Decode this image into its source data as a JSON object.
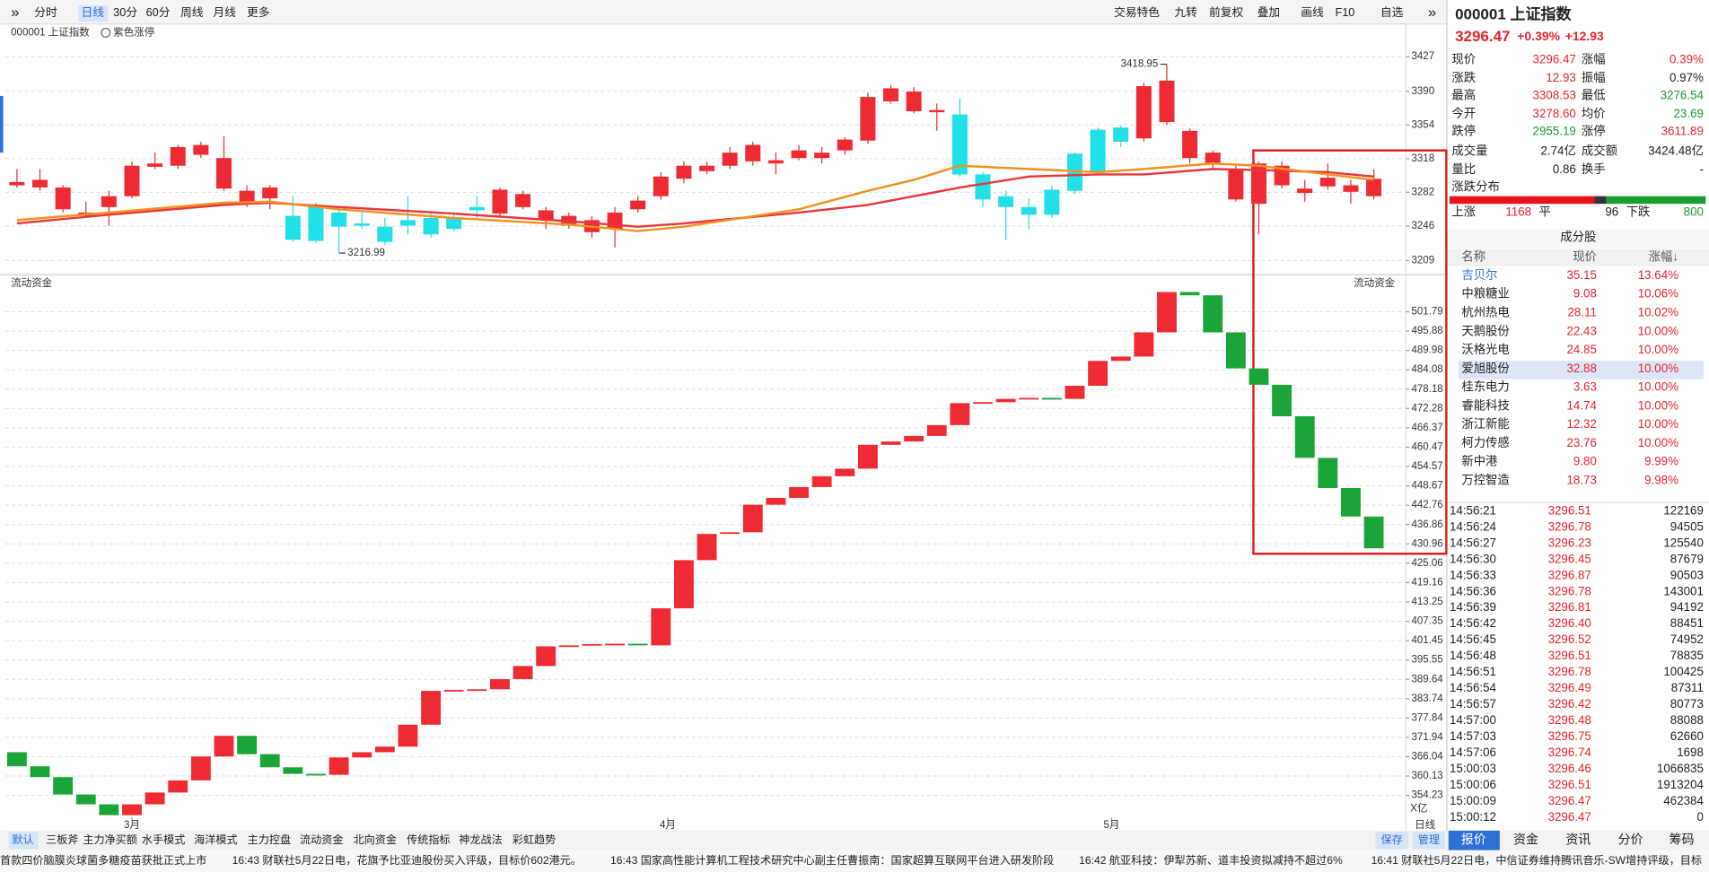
{
  "toolbar": {
    "left": [
      "分时",
      "日线",
      "30分",
      "60分",
      "周线",
      "月线",
      "更多"
    ],
    "right": [
      "交易特色",
      "九转",
      "前复权",
      "叠加",
      "画线",
      "F10",
      "自选"
    ]
  },
  "chart_data": [
    {
      "type": "candlestick",
      "title": "000001 上证指数",
      "subtitle": "紫色涨停",
      "up_color": "#ee2b33",
      "down_color": "#22e0e8",
      "xlim": [
        0.5,
        61.4
      ],
      "ylim": [
        3196.2,
        3458.5
      ],
      "yticks": [
        3427,
        3390,
        3354,
        3318,
        3282,
        3246,
        3209
      ],
      "grid": true,
      "open": [
        3289.5,
        3287.1,
        3263.8,
        3256.8,
        3266.2,
        3277.8,
        3309.3,
        3310.4,
        3322.1,
        3286.0,
        3272.0,
        3275.5,
        3256.8,
        3268.5,
        3260.3,
        3248.7,
        3245.2,
        3252.2,
        3254.5,
        3254.5,
        3266.2,
        3259.2,
        3266.2,
        3252.2,
        3246.3,
        3239.3,
        3242.8,
        3263.8,
        3277.8,
        3296.5,
        3304.6,
        3310.4,
        3315.1,
        3312.8,
        3318.6,
        3318.6,
        3326.8,
        3337.3,
        3379.2,
        3368.7,
        3367.6,
        3365.2,
        3301.1,
        3277.8,
        3266.2,
        3284.8,
        3323.3,
        3348.9,
        3351.2,
        3339.6,
        3357.1,
        3318.6,
        3312.8,
        3274.3,
        3269.7,
        3289.5,
        3281.3,
        3288.3,
        3282.5,
        3277.8
      ],
      "high": [
        3306.9,
        3306.9,
        3289.5,
        3272.0,
        3283.6,
        3315.1,
        3324.4,
        3332.6,
        3336.1,
        3341.9,
        3289.5,
        3289.5,
        3277.8,
        3270.8,
        3263.8,
        3260.3,
        3254.5,
        3277.8,
        3260.3,
        3260.3,
        3277.8,
        3287.1,
        3283.6,
        3266.2,
        3260.3,
        3256.8,
        3266.2,
        3277.8,
        3303.5,
        3315.1,
        3315.1,
        3330.3,
        3336.1,
        3324.4,
        3332.6,
        3330.3,
        3340.7,
        3388.5,
        3396.7,
        3394.4,
        3376.9,
        3382.7,
        3303.5,
        3283.6,
        3275.5,
        3289.5,
        3324.4,
        3351.2,
        3353.6,
        3399.0,
        3418.95,
        3350.1,
        3326.8,
        3312.8,
        3315.1,
        3315.1,
        3295.3,
        3312.8,
        3295.3,
        3306.9
      ],
      "low": [
        3287.1,
        3283.6,
        3260.3,
        3254.5,
        3246.3,
        3275.5,
        3306.9,
        3306.9,
        3318.6,
        3283.6,
        3266.2,
        3263.8,
        3228.9,
        3227.7,
        3216.99,
        3242.8,
        3225.4,
        3237.0,
        3233.5,
        3240.5,
        3254.5,
        3256.8,
        3263.8,
        3242.8,
        3242.8,
        3233.5,
        3223.0,
        3260.3,
        3274.3,
        3291.8,
        3301.1,
        3306.9,
        3310.4,
        3301.1,
        3316.3,
        3312.8,
        3322.1,
        3333.8,
        3376.9,
        3366.4,
        3347.7,
        3298.8,
        3266.2,
        3231.2,
        3242.8,
        3254.5,
        3280.1,
        3303.5,
        3330.3,
        3336.1,
        3353.6,
        3312.8,
        3306.9,
        3272.0,
        3237.0,
        3286.0,
        3272.0,
        3284.8,
        3269.7,
        3274.3
      ],
      "close": [
        3293.0,
        3295.3,
        3287.1,
        3260.3,
        3277.8,
        3310.4,
        3312.8,
        3330.3,
        3332.6,
        3318.6,
        3283.6,
        3287.1,
        3231.2,
        3230.0,
        3245.2,
        3246.3,
        3228.9,
        3246.3,
        3237.0,
        3242.8,
        3262.7,
        3284.8,
        3280.1,
        3262.7,
        3256.8,
        3252.2,
        3260.3,
        3273.1,
        3298.8,
        3310.4,
        3310.4,
        3324.4,
        3332.6,
        3316.3,
        3326.8,
        3324.4,
        3338.4,
        3383.9,
        3393.2,
        3389.7,
        3369.9,
        3301.1,
        3274.3,
        3266.2,
        3258.0,
        3258.0,
        3283.6,
        3304.6,
        3336.1,
        3395.5,
        3401.4,
        3347.7,
        3324.4,
        3306.9,
        3312.8,
        3310.4,
        3286.0,
        3297.6,
        3289.5,
        3296.5
      ],
      "series": [
        {
          "color": "#e8363c",
          "x": [
            1,
            5,
            10,
            12,
            15,
            20,
            25,
            28,
            30,
            35,
            38,
            40,
            42,
            45,
            48,
            50,
            53,
            55,
            58,
            60
          ],
          "values": [
            3248.7,
            3258.0,
            3268.5,
            3270.8,
            3266.2,
            3259.2,
            3251.0,
            3245.2,
            3248.7,
            3260.3,
            3268.5,
            3277.8,
            3287.1,
            3298.8,
            3301.1,
            3301.1,
            3306.9,
            3305.8,
            3303.5,
            3298.8
          ]
        },
        {
          "color": "#f0921e",
          "x": [
            1,
            5,
            10,
            12,
            15,
            20,
            25,
            28,
            30,
            35,
            38,
            40,
            42,
            45,
            48,
            50,
            53,
            55,
            58,
            60
          ],
          "values": [
            3252.2,
            3260.3,
            3270.8,
            3272.0,
            3263.8,
            3254.5,
            3247.5,
            3240.5,
            3245.2,
            3263.8,
            3283.6,
            3295.3,
            3310.4,
            3306.9,
            3303.5,
            3306.9,
            3312.8,
            3310.4,
            3301.1,
            3295.3
          ]
        }
      ],
      "annotations": [
        {
          "x": 51,
          "y": 3418.95
        },
        {
          "x": 15,
          "y": 3216.99
        }
      ]
    },
    {
      "type": "flow",
      "title": "流动资金",
      "up_color": "#ee2b33",
      "down_color": "#1ba438",
      "xlim": [
        0.5,
        61.4
      ],
      "ylim": [
        347.48,
        509.77
      ],
      "yticks": [
        501.79,
        495.88,
        489.98,
        484.08,
        478.18,
        472.28,
        466.37,
        460.47,
        454.57,
        448.67,
        442.76,
        436.86,
        430.96,
        425.06,
        419.16,
        413.25,
        407.35,
        401.45,
        395.55,
        389.64,
        383.74,
        377.84,
        371.94,
        366.04,
        360.13,
        354.23
      ],
      "grid": true,
      "levels": [
        367.4,
        363.1,
        359.8,
        354.5,
        351.5,
        348.2,
        351.5,
        355.1,
        358.8,
        366.1,
        372.4,
        366.8,
        362.8,
        360.8,
        360.5,
        365.8,
        367.4,
        369.1,
        375.8,
        386.1,
        386.4,
        386.6,
        389.7,
        393.7,
        399.7,
        400.0,
        400.4,
        400.5,
        400.0,
        411.3,
        426.0,
        434.0,
        434.5,
        442.9,
        445.0,
        448.3,
        451.6,
        453.9,
        461.2,
        462.2,
        463.9,
        467.2,
        473.9,
        474.2,
        475.2,
        475.5,
        475.2,
        479.2,
        486.8,
        488.1,
        495.5,
        507.8,
        506.8,
        495.5,
        484.5,
        479.5,
        469.9,
        457.2,
        448.0,
        439.3,
        429.6
      ],
      "xticks": [
        {
          "value": 6,
          "label": "3月"
        },
        {
          "value": 29.3,
          "label": "4月"
        },
        {
          "value": 48.6,
          "label": "5月"
        }
      ],
      "unit": "X亿",
      "period": "日线"
    }
  ],
  "quote": {
    "title": "000001 上证指数",
    "price": "3296.47",
    "change_pct": "+0.39%",
    "change": "+12.93",
    "stats": [
      [
        "现价",
        "3296.47",
        "涨幅",
        "0.39%"
      ],
      [
        "涨跌",
        "12.93",
        "振幅",
        "0.97%"
      ],
      [
        "最高",
        "3308.53",
        "最低",
        "3276.54"
      ],
      [
        "今开",
        "3278.60",
        "均价",
        "23.69"
      ],
      [
        "跌停",
        "2955.19",
        "涨停",
        "3611.89"
      ],
      [
        "成交量",
        "2.74亿",
        "成交额",
        "3424.48亿"
      ],
      [
        "量比",
        "0.86",
        "换手",
        "-"
      ]
    ]
  },
  "breadth": {
    "title": "涨跌分布",
    "up_label": "上涨",
    "up": 1168,
    "flat_label": "平",
    "flat": 96,
    "down_label": "下跌",
    "down": 800
  },
  "constituents": {
    "title": "成分股",
    "header": [
      "名称",
      "现价",
      "涨幅↓"
    ],
    "rows": [
      [
        "吉贝尔",
        "35.15",
        "13.64%"
      ],
      [
        "中粮糖业",
        "9.08",
        "10.06%"
      ],
      [
        "杭州热电",
        "28.11",
        "10.02%"
      ],
      [
        "天鹅股份",
        "22.43",
        "10.00%"
      ],
      [
        "沃格光电",
        "24.85",
        "10.00%"
      ],
      [
        "爱旭股份",
        "32.88",
        "10.00%"
      ],
      [
        "桂东电力",
        "3.63",
        "10.00%"
      ],
      [
        "睿能科技",
        "14.74",
        "10.00%"
      ],
      [
        "浙江新能",
        "12.32",
        "10.00%"
      ],
      [
        "柯力传感",
        "23.76",
        "10.00%"
      ],
      [
        "新中港",
        "9.80",
        "9.99%"
      ],
      [
        "万控智造",
        "18.73",
        "9.98%"
      ]
    ]
  },
  "ticks": {
    "rows": [
      [
        "14:56:21",
        "3296.51",
        "122169"
      ],
      [
        "14:56:24",
        "3296.78",
        "94505"
      ],
      [
        "14:56:27",
        "3296.23",
        "125540"
      ],
      [
        "14:56:30",
        "3296.45",
        "87679"
      ],
      [
        "14:56:33",
        "3296.87",
        "90503"
      ],
      [
        "14:56:36",
        "3296.78",
        "143001"
      ],
      [
        "14:56:39",
        "3296.81",
        "94192"
      ],
      [
        "14:56:42",
        "3296.40",
        "88451"
      ],
      [
        "14:56:45",
        "3296.52",
        "74952"
      ],
      [
        "14:56:48",
        "3296.51",
        "78835"
      ],
      [
        "14:56:51",
        "3296.78",
        "100425"
      ],
      [
        "14:56:54",
        "3296.49",
        "87311"
      ],
      [
        "14:56:57",
        "3296.42",
        "80773"
      ],
      [
        "14:57:00",
        "3296.48",
        "88088"
      ],
      [
        "14:57:03",
        "3296.75",
        "62660"
      ],
      [
        "14:57:06",
        "3296.74",
        "1698"
      ],
      [
        "15:00:03",
        "3296.46",
        "1066835"
      ],
      [
        "15:00:06",
        "3296.51",
        "1913204"
      ],
      [
        "15:00:09",
        "3296.47",
        "462384"
      ],
      [
        "15:00:12",
        "3296.47",
        "0"
      ]
    ]
  },
  "indicator_tabs": [
    "默认",
    "三板斧",
    "主力净买额",
    "水手模式",
    "海洋模式",
    "主力控盘",
    "流动资金",
    "北向资金",
    "传统指标",
    "神龙战法",
    "彩虹趋势"
  ],
  "buttons": [
    "保存",
    "管理"
  ],
  "panel_tabs": [
    "报价",
    "资金",
    "资讯",
    "分价",
    "筹码"
  ],
  "news": [
    "首款四价脑膜炎球菌多糖疫苗获批正式上市",
    "16:43 财联社5月22日电，花旗予比亚迪股份买入评级，目标价602港元。",
    "16:43 国家高性能计算机工程技术研究中心副主任曹振南：国家超算互联网平台进入研发阶段",
    "16:42 航亚科技：伊犁苏新、道丰投资拟减持不超过6%",
    "16:41 财联社5月22日电，中信证券维持腾讯音乐-SW增持评级，目标"
  ]
}
